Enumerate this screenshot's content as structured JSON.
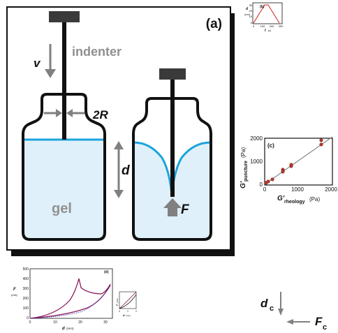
{
  "panel_a": {
    "tag": "(a)",
    "velocity_label": "v",
    "indenter_label": "indenter",
    "radius_label": "2R",
    "depth_label": "d",
    "gel_label": "gel",
    "force_label": "F",
    "colors": {
      "gel_fill": "#dff0fa",
      "gel_surface": "#1aa3dc",
      "bottle": "#111111",
      "arrow": "#808080"
    }
  },
  "panel_b": {
    "tag": "(b)",
    "ylabel": "d",
    "yunit": "(mm)",
    "xlabel": "t",
    "xunit": "(s)",
    "yticks": [
      "30",
      "20",
      "10",
      "0"
    ],
    "xticks": [
      "0",
      "100",
      "200",
      "300"
    ]
  },
  "panel_c": {
    "tag": "(c)",
    "ylabel_main": "G'",
    "ylabel_sub": "puncture",
    "yunit": "(Pa)",
    "xlabel_main": "G'",
    "xlabel_sub": "rheology",
    "xunit": "(Pa)",
    "yticks": [
      "2000",
      "1000",
      "0"
    ],
    "xticks": [
      "0",
      "1000",
      "2000"
    ]
  },
  "panel_d": {
    "tag": "(d)",
    "ylabel": "F",
    "yunit": "(mN)",
    "xlabel": "d",
    "xunit": "(mm)",
    "yticks": [
      "500",
      "400",
      "300",
      "200",
      "100",
      "0"
    ],
    "xticks": [
      "0",
      "10",
      "20",
      "30"
    ],
    "inset_xlabel": "d",
    "inset_xunit": "(mm)",
    "inset_ylabel": "F",
    "inset_yunit": "(mN)",
    "inset_xticks": [
      "0",
      "1",
      "2"
    ]
  },
  "legend_e": {
    "depth_label": "d",
    "depth_sub": "c",
    "force_label": "F",
    "force_sub": "c"
  }
}
